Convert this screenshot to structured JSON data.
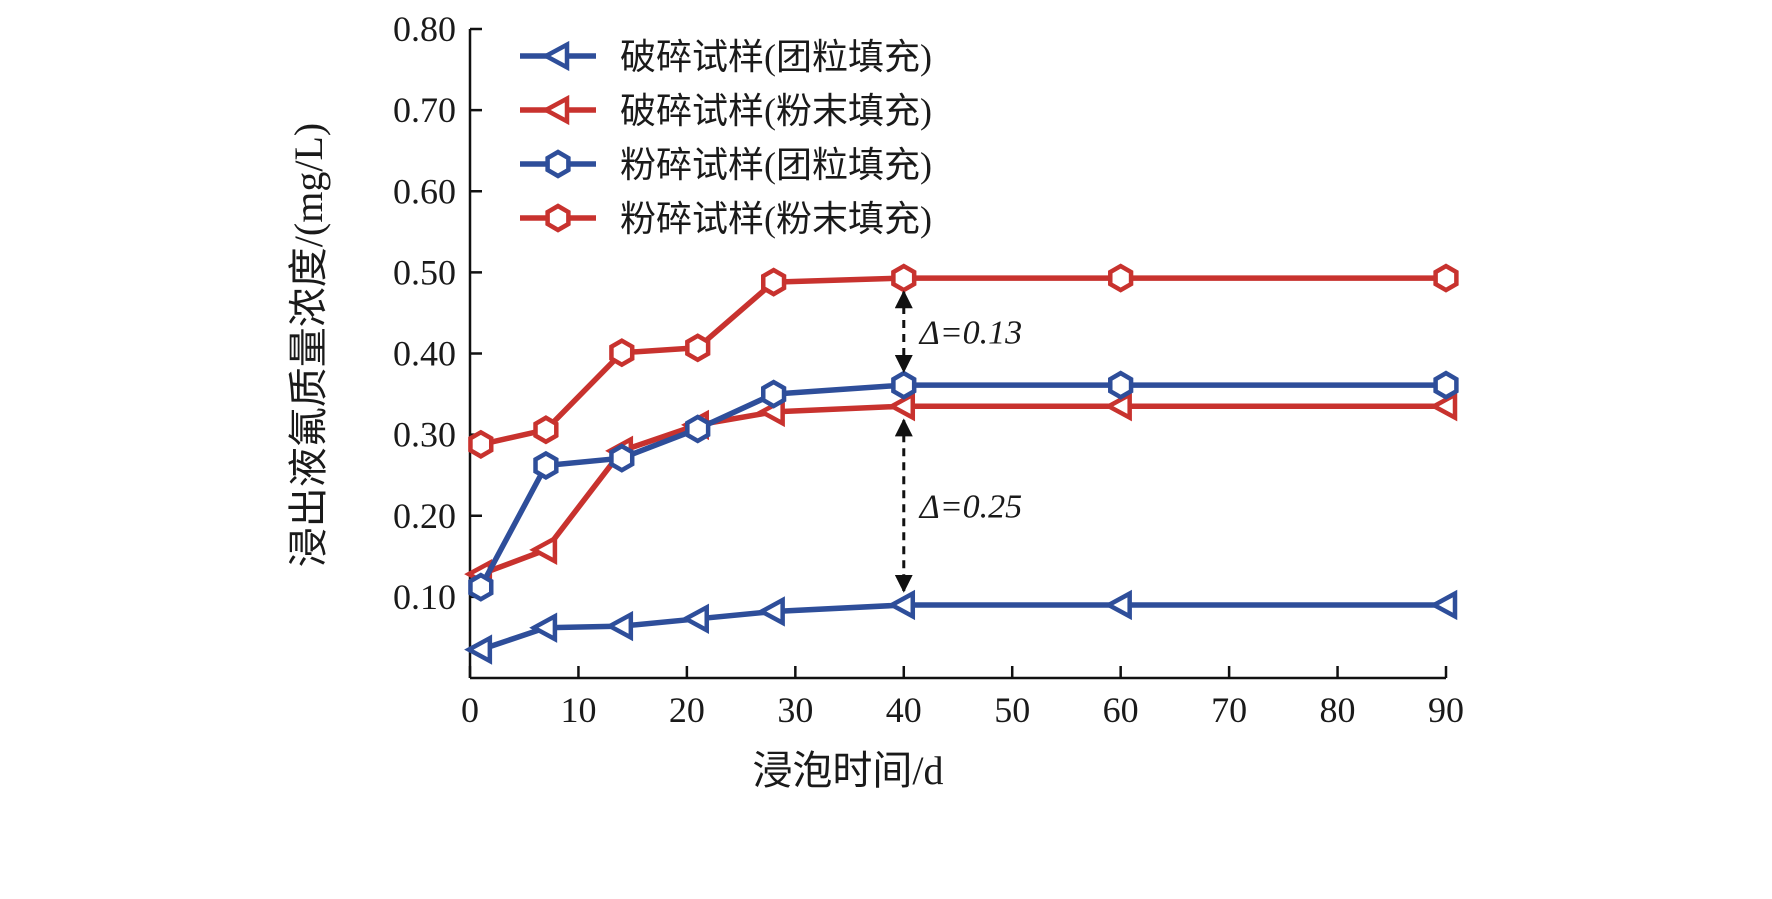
{
  "chart_data": {
    "type": "line",
    "xlabel": "浸泡时间/d",
    "ylabel": "浸出液氟质量浓度/(mg/L)",
    "xlim": [
      0,
      90
    ],
    "ylim": [
      0,
      0.8
    ],
    "x_ticks": [
      "0",
      "10",
      "20",
      "30",
      "40",
      "50",
      "60",
      "70",
      "80",
      "90"
    ],
    "y_ticks": [
      "0.10",
      "0.20",
      "0.30",
      "0.40",
      "0.50",
      "0.60",
      "0.70",
      "0.80"
    ],
    "grid": false,
    "legend_position": "top-left",
    "series": [
      {
        "name": "破碎试样(团粒填充)",
        "color": "#2e4e9a",
        "marker": "triangle-left",
        "x": [
          1,
          7,
          14,
          21,
          28,
          40,
          60,
          90
        ],
        "y": [
          0.035,
          0.062,
          0.064,
          0.073,
          0.082,
          0.09,
          0.09,
          0.09
        ]
      },
      {
        "name": "破碎试样(粉末填充)",
        "color": "#c8322e",
        "marker": "triangle-left",
        "x": [
          1,
          7,
          14,
          21,
          28,
          40,
          60,
          90
        ],
        "y": [
          0.128,
          0.158,
          0.28,
          0.312,
          0.328,
          0.335,
          0.335,
          0.335
        ]
      },
      {
        "name": "粉碎试样(团粒填充)",
        "color": "#2e4e9a",
        "marker": "hexagon",
        "x": [
          1,
          7,
          14,
          21,
          28,
          40,
          60,
          90
        ],
        "y": [
          0.112,
          0.262,
          0.271,
          0.307,
          0.35,
          0.361,
          0.361,
          0.361
        ]
      },
      {
        "name": "粉碎试样(粉末填充)",
        "color": "#c8322e",
        "marker": "hexagon",
        "x": [
          1,
          7,
          14,
          21,
          28,
          40,
          60,
          90
        ],
        "y": [
          0.288,
          0.306,
          0.401,
          0.407,
          0.488,
          0.493,
          0.493,
          0.493
        ]
      }
    ],
    "annotations": [
      {
        "label": "Δ=0.13",
        "x": 40,
        "y_from": 0.361,
        "y_to": 0.493
      },
      {
        "label": "Δ=0.25",
        "x": 40,
        "y_from": 0.09,
        "y_to": 0.335
      }
    ]
  }
}
